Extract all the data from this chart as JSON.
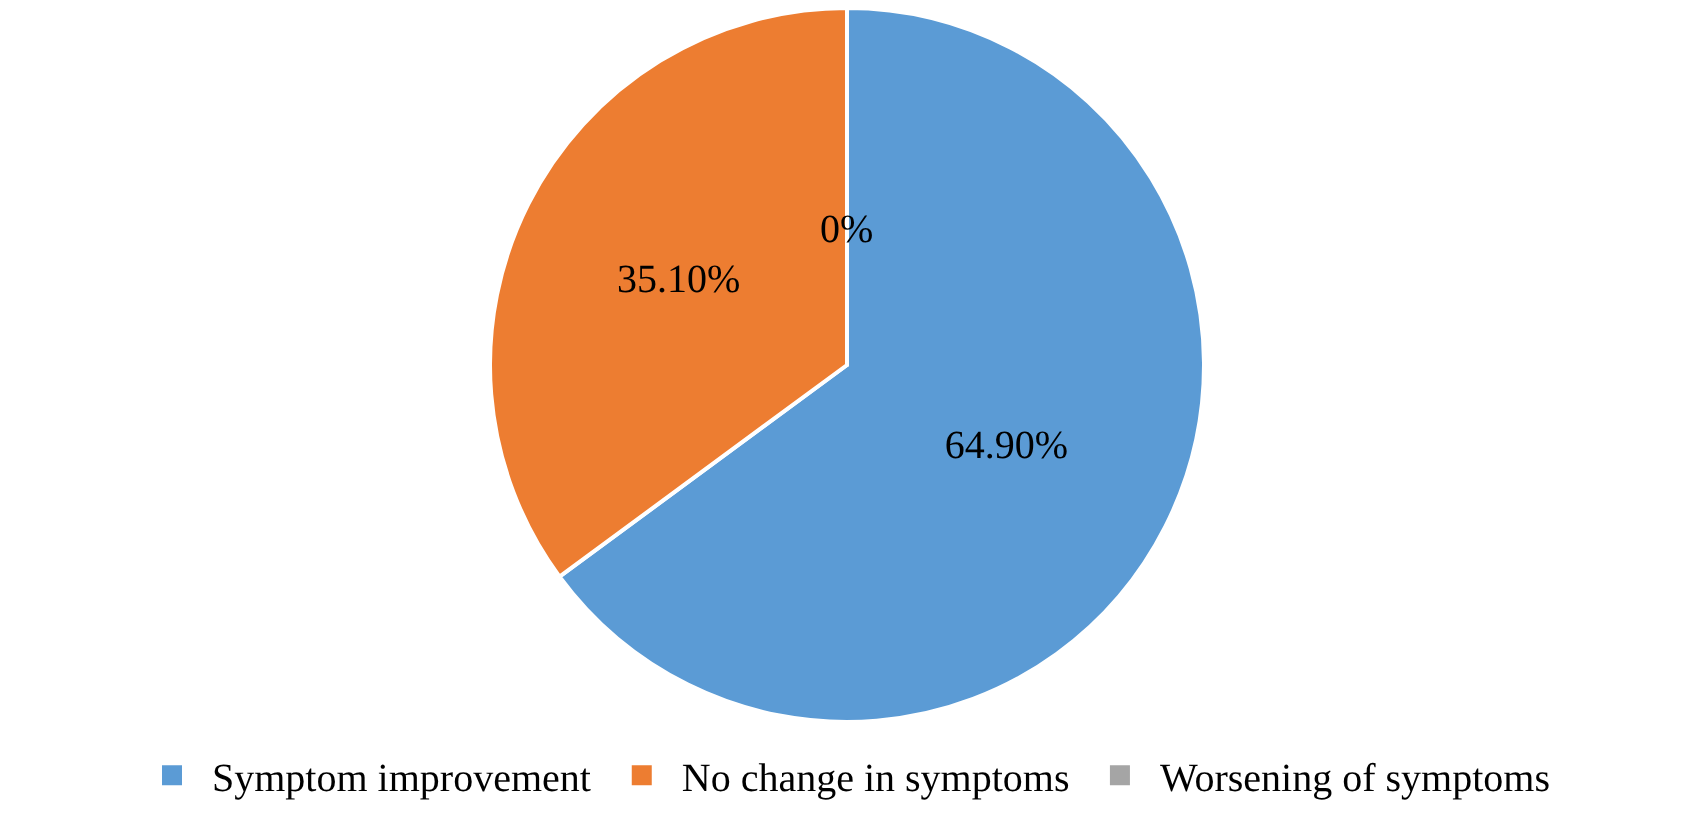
{
  "chart_data": {
    "type": "pie",
    "categories": [
      "Symptom improvement",
      "No change in symptoms",
      "Worsening of symptoms"
    ],
    "values": [
      64.9,
      35.1,
      0
    ],
    "value_labels": [
      "64.90%",
      "35.10%",
      "0%"
    ],
    "colors": [
      "#5b9bd5",
      "#ed7d31",
      "#a5a5a5"
    ],
    "legend": "bottom"
  }
}
